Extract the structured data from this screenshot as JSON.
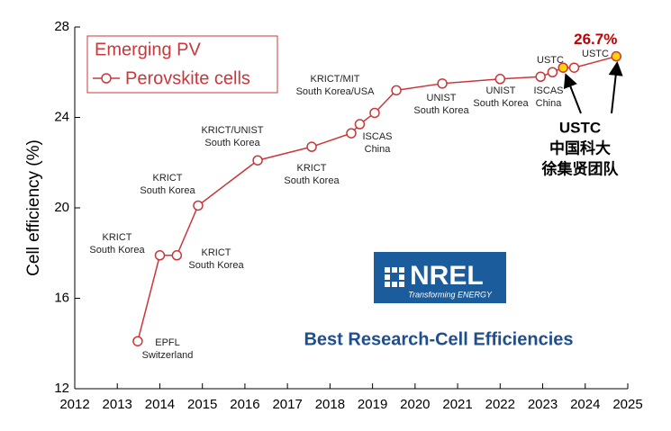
{
  "chart_data": {
    "type": "line",
    "ylabel": "Cell efficiency (%)",
    "legend_title": "Emerging PV",
    "xlim": [
      2012,
      2025
    ],
    "xticks": [
      2012,
      2013,
      2014,
      2015,
      2016,
      2017,
      2018,
      2019,
      2020,
      2021,
      2022,
      2023,
      2024,
      2025
    ],
    "ylim": [
      12,
      28
    ],
    "yticks": [
      12,
      16,
      20,
      24,
      28
    ],
    "series": [
      {
        "name": "Perovskite cells",
        "color": "#c8383b",
        "x": [
          2013.48,
          2014.0,
          2014.4,
          2014.9,
          2016.3,
          2017.57,
          2018.5,
          2018.7,
          2019.05,
          2019.56,
          2020.64,
          2022.0,
          2022.95,
          2023.23,
          2023.48,
          2023.74,
          2024.73
        ],
        "values": [
          14.1,
          17.9,
          17.9,
          20.1,
          22.1,
          22.7,
          23.3,
          23.7,
          24.2,
          25.2,
          25.5,
          25.7,
          25.8,
          26.0,
          26.2,
          26.2,
          26.7
        ],
        "marker_colors": [
          "#ffffff",
          "#ffffff",
          "#ffffff",
          "#ffffff",
          "#ffffff",
          "#ffffff",
          "#ffffff",
          "#ffffff",
          "#ffffff",
          "#ffffff",
          "#ffffff",
          "#ffffff",
          "#ffffff",
          "#ffffff",
          "#ffd400",
          "#ffffff",
          "#ffd400"
        ],
        "value_labels": [
          null,
          null,
          null,
          null,
          null,
          null,
          null,
          null,
          null,
          null,
          null,
          null,
          null,
          null,
          null,
          null,
          "26.7%"
        ]
      }
    ],
    "annotations": [
      {
        "lines": [
          "EPFL",
          "Switzerland"
        ]
      },
      {
        "lines": [
          "KRICT",
          "South Korea"
        ]
      },
      {
        "lines": [
          "KRICT",
          "South Korea"
        ]
      },
      {
        "lines": [
          "KRICT",
          "South Korea"
        ]
      },
      {
        "lines": [
          "KRICT/UNIST",
          "South Korea"
        ]
      },
      {
        "lines": [
          "KRICT",
          "South Korea"
        ]
      },
      {
        "lines": [
          "ISCAS",
          "China"
        ]
      },
      {
        "lines": [
          "KRICT/MIT",
          "South Korea/USA"
        ]
      },
      {
        "lines": [
          "UNIST",
          "South Korea"
        ]
      },
      {
        "lines": [
          "UNIST",
          "South Korea"
        ]
      },
      {
        "lines": [
          "ISCAS",
          "China"
        ]
      },
      {
        "lines": [
          "USTC"
        ]
      },
      {
        "lines": [
          "USTC"
        ]
      },
      {
        "lines": [
          "USTC",
          "中国科大",
          "徐集贤团队"
        ]
      }
    ],
    "logo": {
      "name": "NREL",
      "tagline": "Transforming ENERGY"
    },
    "caption": "Best Research-Cell Efficiencies"
  }
}
